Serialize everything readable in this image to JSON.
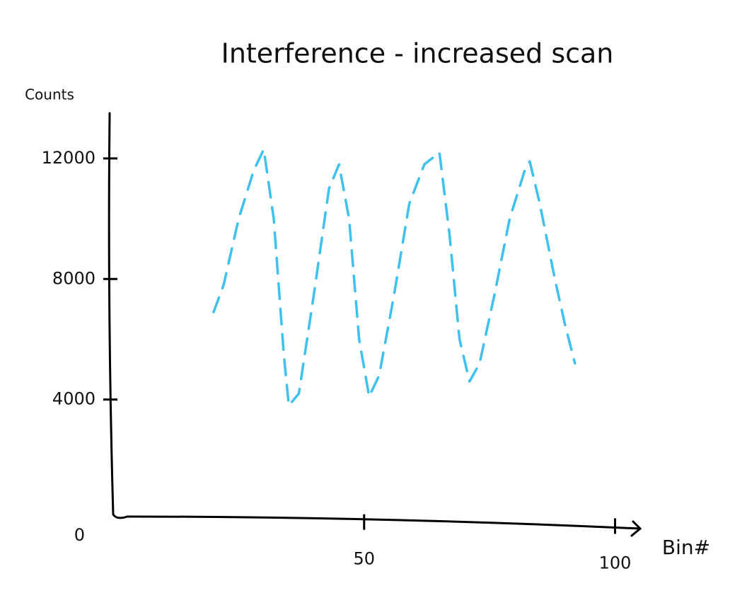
{
  "chart_data": {
    "type": "line",
    "title": "Interference - increased scan",
    "y_label": "Counts",
    "x_label": "Bin#",
    "x": [
      20,
      22,
      25,
      28,
      30,
      32,
      34,
      35,
      37,
      40,
      43,
      45,
      47,
      49,
      51,
      53,
      56,
      59,
      62,
      65,
      67,
      69,
      71,
      73,
      76,
      79,
      82,
      83,
      85,
      88,
      90,
      92
    ],
    "values": [
      6900,
      7800,
      10000,
      11600,
      12300,
      10000,
      5500,
      3800,
      4200,
      7500,
      11000,
      11800,
      10000,
      6000,
      4100,
      4800,
      7500,
      10500,
      11800,
      12200,
      9500,
      6000,
      4600,
      5200,
      7500,
      10000,
      11600,
      11900,
      10500,
      8000,
      6500,
      5200
    ],
    "color": "#3ec1ee",
    "dashed": true,
    "xlim": [
      0,
      105
    ],
    "ylim": [
      0,
      13500
    ],
    "xticks": [
      50,
      100
    ],
    "yticks": [
      0,
      4000,
      8000,
      12000
    ],
    "grid": false
  }
}
